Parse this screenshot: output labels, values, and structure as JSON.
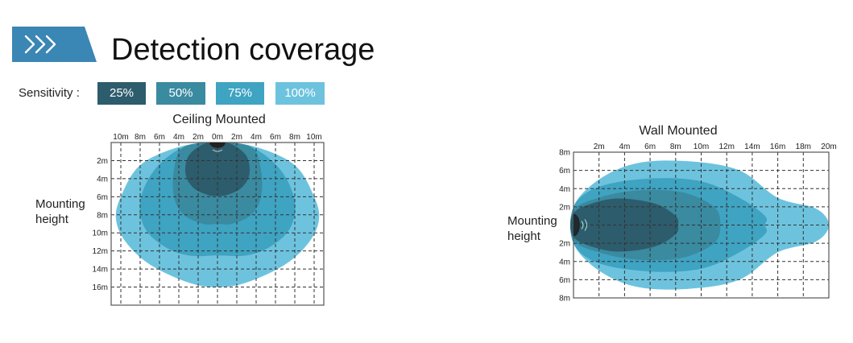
{
  "page": {
    "title": "Detection coverage",
    "badge_icon": "chevrons-right-icon",
    "badge_color": "#3a86b4"
  },
  "legend": {
    "label": "Sensitivity :",
    "items": [
      {
        "label": "25%",
        "color": "#2d5c6c"
      },
      {
        "label": "50%",
        "color": "#3a8aa0"
      },
      {
        "label": "75%",
        "color": "#3fa3c2"
      },
      {
        "label": "100%",
        "color": "#6dc3de"
      }
    ]
  },
  "chart_data": [
    {
      "type": "area",
      "title": "Ceiling Mounted",
      "ylabel_lines": [
        "Mounting",
        "height"
      ],
      "x_tick_labels": [
        "10m",
        "8m",
        "6m",
        "4m",
        "2m",
        "0m",
        "2m",
        "4m",
        "6m",
        "8m",
        "10m"
      ],
      "x_ticks": [
        -10,
        -8,
        -6,
        -4,
        -2,
        0,
        2,
        4,
        6,
        8,
        10
      ],
      "y_ticks": [
        2,
        4,
        6,
        8,
        10,
        12,
        14,
        16
      ],
      "y_tick_labels": [
        "2m",
        "4m",
        "6m",
        "8m",
        "10m",
        "12m",
        "14m",
        "16m"
      ],
      "xlim": [
        -11,
        11
      ],
      "ylim": [
        0,
        18
      ],
      "grid": "dashed",
      "sensor_icon": "ceiling-sensor-icon",
      "series": [
        {
          "name": "100%",
          "color": "#6dc3de",
          "outline": [
            [
              0,
              0
            ],
            [
              -4,
              0.5
            ],
            [
              -8,
              2.5
            ],
            [
              -10,
              6
            ],
            [
              -10.5,
              8.5
            ],
            [
              -9.5,
              11
            ],
            [
              -7,
              13.5
            ],
            [
              -3,
              15.5
            ],
            [
              0,
              16
            ],
            [
              3,
              15.5
            ],
            [
              7,
              13.5
            ],
            [
              9.5,
              11
            ],
            [
              10.5,
              8.5
            ],
            [
              10,
              6
            ],
            [
              8,
              2.5
            ],
            [
              4,
              0.5
            ]
          ]
        },
        {
          "name": "75%",
          "color": "#3fa3c2",
          "outline": [
            [
              0,
              0
            ],
            [
              -3.5,
              0.5
            ],
            [
              -6.5,
              3
            ],
            [
              -8,
              6.5
            ],
            [
              -7.5,
              9.5
            ],
            [
              -5.5,
              11.5
            ],
            [
              -3,
              12.5
            ],
            [
              0,
              12.5
            ],
            [
              3,
              12.5
            ],
            [
              5.5,
              11.5
            ],
            [
              7.5,
              9.5
            ],
            [
              8,
              6.5
            ],
            [
              6.5,
              3
            ],
            [
              3.5,
              0.5
            ]
          ]
        },
        {
          "name": "50%",
          "color": "#3a8aa0",
          "outline": [
            [
              0,
              0
            ],
            [
              -3.5,
              0.5
            ],
            [
              -4.5,
              3
            ],
            [
              -4.5,
              6
            ],
            [
              -3.5,
              8
            ],
            [
              -1.5,
              9
            ],
            [
              0,
              9
            ],
            [
              1.5,
              9
            ],
            [
              3.5,
              8
            ],
            [
              4.5,
              6
            ],
            [
              4.5,
              3
            ],
            [
              3.5,
              0.5
            ]
          ]
        },
        {
          "name": "25%",
          "color": "#2d5c6c",
          "outline": [
            [
              0,
              0
            ],
            [
              -1.5,
              0.2
            ],
            [
              -3,
              1.5
            ],
            [
              -3.3,
              3.5
            ],
            [
              -2.5,
              5
            ],
            [
              -1,
              5.8
            ],
            [
              0,
              5.9
            ],
            [
              1,
              5.8
            ],
            [
              2.5,
              5
            ],
            [
              3.3,
              3.5
            ],
            [
              3,
              1.5
            ],
            [
              1.5,
              0.2
            ]
          ]
        }
      ]
    },
    {
      "type": "area",
      "title": "Wall Mounted",
      "ylabel_lines": [
        "Mounting",
        "height"
      ],
      "x_ticks": [
        2,
        4,
        6,
        8,
        10,
        12,
        14,
        16,
        18,
        20
      ],
      "x_tick_labels": [
        "2m",
        "4m",
        "6m",
        "8m",
        "10m",
        "12m",
        "14m",
        "16m",
        "18m",
        "20m"
      ],
      "y_ticks": [
        8,
        6,
        4,
        2,
        -2,
        -4,
        -6,
        -8
      ],
      "y_tick_labels": [
        "8m",
        "6m",
        "4m",
        "2m",
        "2m",
        "4m",
        "6m",
        "8m"
      ],
      "xlim": [
        0,
        20
      ],
      "ylim": [
        -8,
        8
      ],
      "grid": "dashed",
      "sensor_icon": "wall-sensor-icon",
      "series": [
        {
          "name": "100%",
          "color": "#6dc3de",
          "outline": [
            [
              0,
              2
            ],
            [
              2,
              5
            ],
            [
              5,
              6.8
            ],
            [
              9,
              7
            ],
            [
              13,
              6
            ],
            [
              16,
              3
            ],
            [
              19,
              1.8
            ],
            [
              20,
              0
            ],
            [
              19,
              -1.8
            ],
            [
              16,
              -3
            ],
            [
              13,
              -6
            ],
            [
              9,
              -7
            ],
            [
              5,
              -6.8
            ],
            [
              2,
              -5
            ],
            [
              0,
              -2
            ]
          ]
        },
        {
          "name": "75%",
          "color": "#3fa3c2",
          "outline": [
            [
              0,
              2
            ],
            [
              2,
              4.2
            ],
            [
              6,
              5.1
            ],
            [
              10,
              4.8
            ],
            [
              13,
              3
            ],
            [
              15,
              1
            ],
            [
              15,
              0
            ],
            [
              15,
              -1
            ],
            [
              13,
              -3
            ],
            [
              10,
              -4.8
            ],
            [
              6,
              -5.1
            ],
            [
              2,
              -4.2
            ],
            [
              0,
              -2
            ]
          ]
        },
        {
          "name": "50%",
          "color": "#3a8aa0",
          "outline": [
            [
              0,
              1.6
            ],
            [
              2,
              3
            ],
            [
              5,
              3.8
            ],
            [
              8.5,
              3.6
            ],
            [
              11,
              2
            ],
            [
              11.5,
              0
            ],
            [
              11,
              -2
            ],
            [
              8.5,
              -3.6
            ],
            [
              5,
              -3.8
            ],
            [
              2,
              -3
            ],
            [
              0,
              -1.6
            ]
          ]
        },
        {
          "name": "25%",
          "color": "#2d5c6c",
          "outline": [
            [
              0,
              1.3
            ],
            [
              2,
              2.6
            ],
            [
              4,
              2.9
            ],
            [
              6.5,
              2.3
            ],
            [
              8,
              1
            ],
            [
              8.2,
              0
            ],
            [
              8,
              -1
            ],
            [
              6.5,
              -2.3
            ],
            [
              4,
              -2.9
            ],
            [
              2,
              -2.6
            ],
            [
              0,
              -1.3
            ]
          ]
        }
      ]
    }
  ]
}
